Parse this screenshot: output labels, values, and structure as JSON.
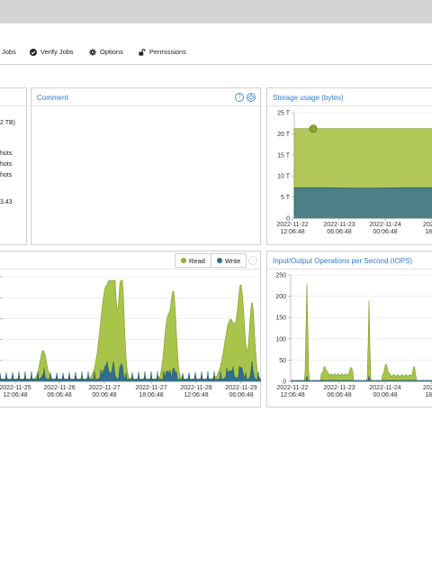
{
  "toolbar": {
    "items": [
      {
        "label": "Jobs",
        "icon": "none"
      },
      {
        "label": "Verify Jobs",
        "icon": "check-circle-icon"
      },
      {
        "label": "Options",
        "icon": "gear-icon"
      },
      {
        "label": "Permissions",
        "icon": "unlock-icon"
      }
    ]
  },
  "left_panel": {
    "lines": [
      "2 TB)",
      "hots",
      "hots",
      "hots",
      "3.43"
    ]
  },
  "comment_panel": {
    "title": "Comment",
    "help_icon": "?",
    "settings_icon": "gear-icon"
  },
  "storage_panel": {
    "title": "Storage usage (bytes)"
  },
  "io_panel": {
    "legend": {
      "read_label": "Read",
      "write_label": "Write",
      "read_color": "#8fb130",
      "write_color": "#2f6e8e"
    }
  },
  "iops_panel": {
    "title": "Input/Output Operations per Second (IOPS)"
  },
  "chart_data": [
    {
      "name": "storage-usage",
      "type": "area",
      "title": "Storage usage (bytes)",
      "y_tick_labels": [
        "0",
        "5 T",
        "10 T",
        "15 T",
        "20 T",
        "25 T"
      ],
      "ylim": [
        0,
        25
      ],
      "x_tick_labels": [
        [
          "2022-11-22",
          "12:06:48"
        ],
        [
          "2022-11-23",
          "06:06:48"
        ],
        [
          "2022-11-24",
          "00:06:48"
        ],
        [
          "2022-",
          "18:0"
        ]
      ],
      "series": [
        {
          "name": "Total",
          "color": "#b2c95a",
          "values": [
            21.2,
            21.2,
            21.2,
            21.2,
            21.2
          ]
        },
        {
          "name": "Used",
          "color": "#4e7f86",
          "values": [
            7.2,
            7.2,
            7.1,
            7.2,
            7.2
          ]
        }
      ],
      "marker_value": 21.2,
      "grid": true
    },
    {
      "name": "io-throughput",
      "type": "area",
      "x_tick_labels": [
        [
          "2022-11-25",
          "12:06:48"
        ],
        [
          "2022-11-26",
          "06:06:48"
        ],
        [
          "2022-11-27",
          "00:06:48"
        ],
        [
          "2022-11-27",
          "18:06:48"
        ],
        [
          "2022-11-28",
          "12:06:48"
        ],
        [
          "2022-11-29",
          "06:06:48"
        ]
      ],
      "series": [
        {
          "name": "Read",
          "color": "#a8c44a"
        },
        {
          "name": "Write",
          "color": "#2f6e8e"
        }
      ],
      "grid": true
    },
    {
      "name": "iops",
      "type": "area",
      "title": "Input/Output Operations per Second (IOPS)",
      "y_tick_labels": [
        "0",
        "50",
        "100",
        "150",
        "200",
        "250"
      ],
      "ylim": [
        0,
        250
      ],
      "x_tick_labels": [
        [
          "2022-11-22",
          "12:06:48"
        ],
        [
          "2022-11-23",
          "06:06:48"
        ],
        [
          "2022-11-24",
          "00:06:48"
        ],
        [
          "2022-",
          "18:0"
        ]
      ],
      "series": [
        {
          "name": "Read",
          "color": "#a8c44a"
        },
        {
          "name": "Write",
          "color": "#2f6e8e"
        }
      ],
      "grid": true
    }
  ]
}
